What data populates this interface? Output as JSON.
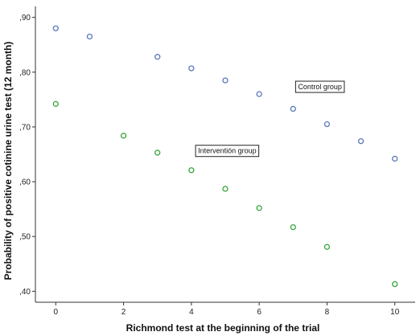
{
  "chart_data": {
    "type": "scatter",
    "title": "",
    "xlabel": "Richmond test at the beginning of the trial",
    "ylabel": "Probability of positive cotinine urine test (12 month)",
    "xlim": [
      -0.6,
      10.6
    ],
    "ylim": [
      0.38,
      0.92
    ],
    "x_ticks": [
      0,
      2,
      4,
      6,
      8,
      10
    ],
    "x_tick_labels": [
      "0",
      "2",
      "4",
      "6",
      "8",
      "10"
    ],
    "y_ticks": [
      0.4,
      0.5,
      0.6,
      0.7,
      0.8,
      0.9
    ],
    "y_tick_labels": [
      ",40",
      ",50",
      ",60",
      ",70",
      ",80",
      ",90"
    ],
    "grid": false,
    "series": [
      {
        "color": "#5a78b8",
        "points": [
          {
            "x": 0,
            "y": 0.88
          },
          {
            "x": 1,
            "y": 0.865
          },
          {
            "x": 3,
            "y": 0.828
          },
          {
            "x": 4,
            "y": 0.807
          },
          {
            "x": 5,
            "y": 0.785
          },
          {
            "x": 6,
            "y": 0.76
          },
          {
            "x": 7,
            "y": 0.733
          },
          {
            "x": 8,
            "y": 0.705
          },
          {
            "x": 9,
            "y": 0.674
          },
          {
            "x": 10,
            "y": 0.642
          }
        ]
      },
      {
        "color": "#3aa53a",
        "points": [
          {
            "x": 0,
            "y": 0.742
          },
          {
            "x": 2,
            "y": 0.684
          },
          {
            "x": 3,
            "y": 0.653
          },
          {
            "x": 4,
            "y": 0.621
          },
          {
            "x": 5,
            "y": 0.587
          },
          {
            "x": 6,
            "y": 0.552
          },
          {
            "x": 7,
            "y": 0.517
          },
          {
            "x": 8,
            "y": 0.481
          },
          {
            "x": 10,
            "y": 0.413
          }
        ]
      }
    ],
    "annotations": [
      {
        "text": "Control group",
        "x": 7.05,
        "y": 0.774
      },
      {
        "text": "Interventión group",
        "x": 4.1,
        "y": 0.657
      }
    ]
  }
}
